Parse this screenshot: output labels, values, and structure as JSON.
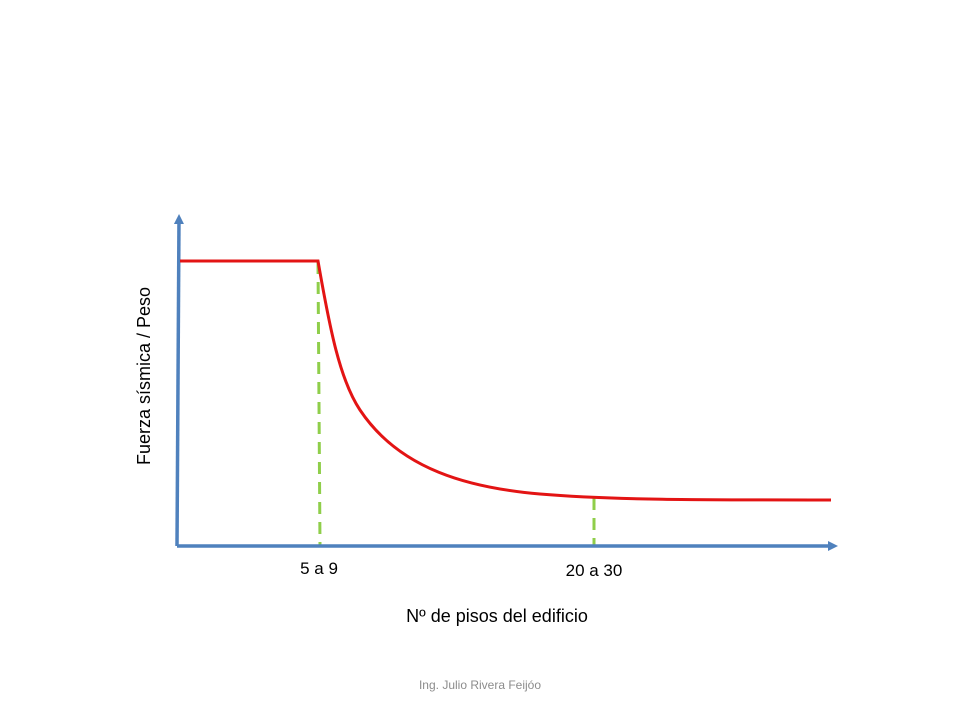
{
  "diagram": {
    "y_axis_label": "Fuerza sísmica / Peso",
    "x_axis_label": "Nº de pisos del edificio",
    "markers": [
      {
        "label": "5 a 9"
      },
      {
        "label": "20 a 30"
      }
    ],
    "colors": {
      "axis": "#4f81bd",
      "curve": "#e31414",
      "guide": "#8fce4a"
    }
  },
  "footer": {
    "credit": "Ing. Julio Rivera Feijóo"
  }
}
